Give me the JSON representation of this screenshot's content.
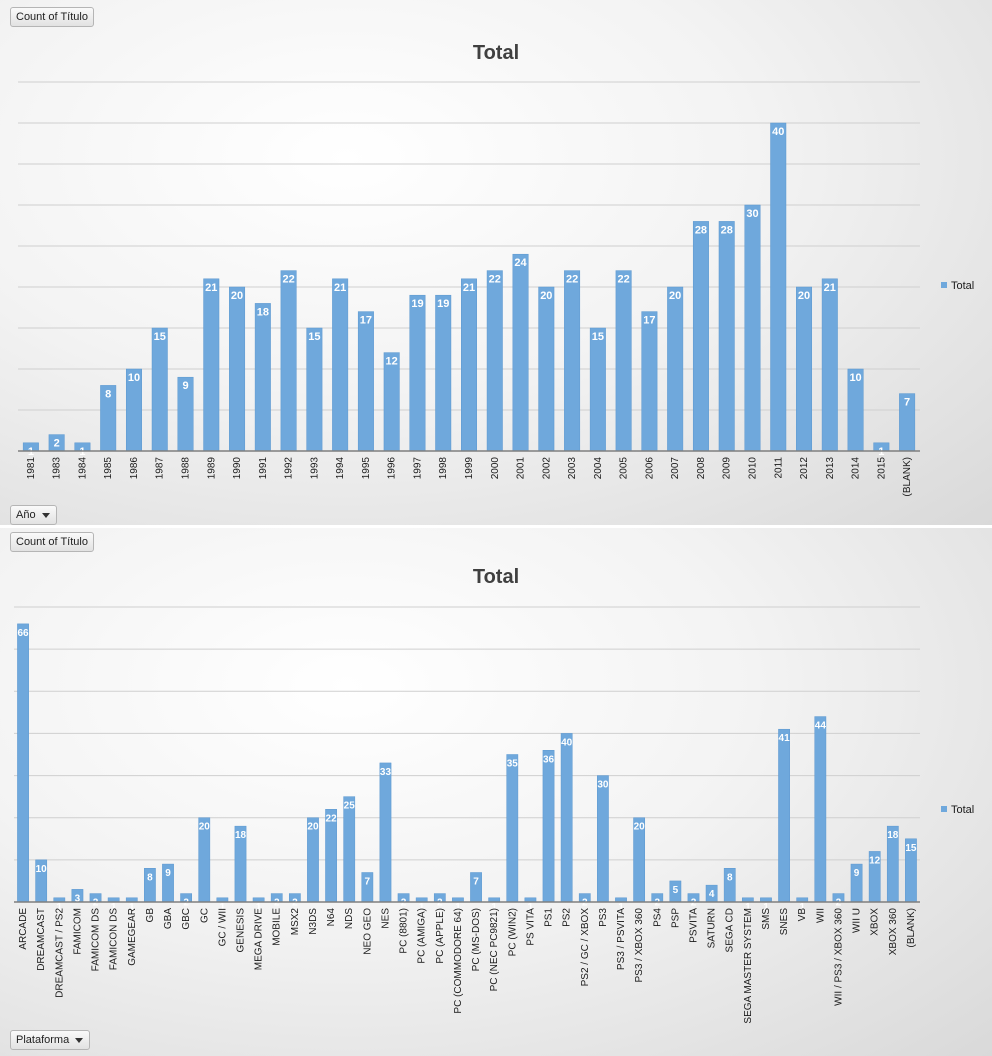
{
  "colors": {
    "bar": "#6fa8dc",
    "bar_stroke": "#5b97cf",
    "gridline": "#cfcfcf",
    "axis": "#7f7f7f",
    "label": "#ffffff",
    "text": "#1a1a1a"
  },
  "chart_data": [
    {
      "type": "bar",
      "title": "Total",
      "legend": {
        "entries": [
          "Total"
        ],
        "position": "right"
      },
      "field_buttons": {
        "value": "Count of Título",
        "axis": "Año"
      },
      "ylim": [
        0,
        45
      ],
      "grid": true,
      "categories": [
        "1981",
        "1983",
        "1984",
        "1985",
        "1986",
        "1987",
        "1988",
        "1989",
        "1990",
        "1991",
        "1992",
        "1993",
        "1994",
        "1995",
        "1996",
        "1997",
        "1998",
        "1999",
        "2000",
        "2001",
        "2002",
        "2003",
        "2004",
        "2005",
        "2006",
        "2007",
        "2008",
        "2009",
        "2010",
        "2011",
        "2012",
        "2013",
        "2014",
        "2015",
        "(BLANK)"
      ],
      "series": [
        {
          "name": "Total",
          "values": [
            1,
            2,
            1,
            8,
            10,
            15,
            9,
            21,
            20,
            18,
            22,
            15,
            21,
            17,
            12,
            19,
            19,
            21,
            22,
            24,
            20,
            22,
            15,
            22,
            17,
            20,
            28,
            28,
            30,
            40,
            20,
            21,
            10,
            1,
            7
          ]
        }
      ]
    },
    {
      "type": "bar",
      "title": "Total",
      "legend": {
        "entries": [
          "Total"
        ],
        "position": "right"
      },
      "field_buttons": {
        "value": "Count of Título",
        "axis": "Plataforma"
      },
      "ylim": [
        0,
        70
      ],
      "grid": true,
      "categories": [
        "ARCADE",
        "DREAMCAST",
        "DREAMCAST / PS2",
        "FAMICOM",
        "FAMICOM DS",
        "FAMICON DS",
        "GAMEGEAR",
        "GB",
        "GBA",
        "GBC",
        "GC",
        "GC / WII",
        "GENESIS",
        "MEGA DRIVE",
        "MOBILE",
        "MSX2",
        "N3DS",
        "N64",
        "NDS",
        "NEO GEO",
        "NES",
        "PC (8801)",
        "PC (AMIGA)",
        "PC (APPLE)",
        "PC (COMMODORE 64)",
        "PC (MS-DOS)",
        "PC (NEC PC9821)",
        "PC (WIN2)",
        "PS VITA",
        "PS1",
        "PS2",
        "PS2 / GC / XBOX",
        "PS3",
        "PS3 / PSVITA",
        "PS3 / XBOX 360",
        "PS4",
        "PSP",
        "PSVITA",
        "SATURN",
        "SEGA CD",
        "SEGA MASTER SYSTEM",
        "SMS",
        "SNES",
        "VB",
        "WII",
        "WII / PS3 / XBOX 360",
        "WII U",
        "XBOX",
        "XBOX 360",
        "(BLANK)"
      ],
      "series": [
        {
          "name": "Total",
          "values": [
            66,
            10,
            1,
            3,
            2,
            1,
            1,
            8,
            9,
            2,
            20,
            1,
            18,
            1,
            2,
            2,
            20,
            22,
            25,
            7,
            33,
            2,
            1,
            2,
            1,
            7,
            1,
            35,
            1,
            36,
            40,
            2,
            30,
            1,
            20,
            2,
            5,
            2,
            4,
            8,
            1,
            1,
            41,
            1,
            44,
            2,
            9,
            12,
            18,
            15
          ]
        }
      ]
    }
  ]
}
